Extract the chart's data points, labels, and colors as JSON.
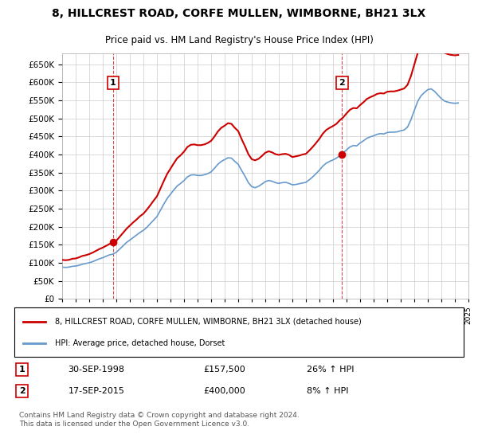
{
  "title": "8, HILLCREST ROAD, CORFE MULLEN, WIMBORNE, BH21 3LX",
  "subtitle": "Price paid vs. HM Land Registry's House Price Index (HPI)",
  "legend_line1": "8, HILLCREST ROAD, CORFE MULLEN, WIMBORNE, BH21 3LX (detached house)",
  "legend_line2": "HPI: Average price, detached house, Dorset",
  "transaction1_label": "1",
  "transaction1_date": "30-SEP-1998",
  "transaction1_price": "£157,500",
  "transaction1_hpi": "26% ↑ HPI",
  "transaction2_label": "2",
  "transaction2_date": "17-SEP-2015",
  "transaction2_price": "£400,000",
  "transaction2_hpi": "8% ↑ HPI",
  "footnote": "Contains HM Land Registry data © Crown copyright and database right 2024.\nThis data is licensed under the Open Government Licence v3.0.",
  "red_color": "#cc0000",
  "blue_color": "#6699cc",
  "marker_color": "#cc0000",
  "background_color": "#ffffff",
  "grid_color": "#cccccc",
  "ylim": [
    0,
    680000
  ],
  "yticks": [
    0,
    50000,
    100000,
    150000,
    200000,
    250000,
    300000,
    350000,
    400000,
    450000,
    500000,
    550000,
    600000,
    650000
  ],
  "hpi_x": [
    1995.0,
    1995.25,
    1995.5,
    1995.75,
    1996.0,
    1996.25,
    1996.5,
    1996.75,
    1997.0,
    1997.25,
    1997.5,
    1997.75,
    1998.0,
    1998.25,
    1998.5,
    1998.75,
    1999.0,
    1999.25,
    1999.5,
    1999.75,
    2000.0,
    2000.25,
    2000.5,
    2000.75,
    2001.0,
    2001.25,
    2001.5,
    2001.75,
    2002.0,
    2002.25,
    2002.5,
    2002.75,
    2003.0,
    2003.25,
    2003.5,
    2003.75,
    2004.0,
    2004.25,
    2004.5,
    2004.75,
    2005.0,
    2005.25,
    2005.5,
    2005.75,
    2006.0,
    2006.25,
    2006.5,
    2006.75,
    2007.0,
    2007.25,
    2007.5,
    2007.75,
    2008.0,
    2008.25,
    2008.5,
    2008.75,
    2009.0,
    2009.25,
    2009.5,
    2009.75,
    2010.0,
    2010.25,
    2010.5,
    2010.75,
    2011.0,
    2011.25,
    2011.5,
    2011.75,
    2012.0,
    2012.25,
    2012.5,
    2012.75,
    2013.0,
    2013.25,
    2013.5,
    2013.75,
    2014.0,
    2014.25,
    2014.5,
    2014.75,
    2015.0,
    2015.25,
    2015.5,
    2015.75,
    2016.0,
    2016.25,
    2016.5,
    2016.75,
    2017.0,
    2017.25,
    2017.5,
    2017.75,
    2018.0,
    2018.25,
    2018.5,
    2018.75,
    2019.0,
    2019.25,
    2019.5,
    2019.75,
    2020.0,
    2020.25,
    2020.5,
    2020.75,
    2021.0,
    2021.25,
    2021.5,
    2021.75,
    2022.0,
    2022.25,
    2022.5,
    2022.75,
    2023.0,
    2023.25,
    2023.5,
    2023.75,
    2024.0,
    2024.25
  ],
  "hpi_y": [
    88000,
    87000,
    88000,
    90000,
    91000,
    93000,
    96000,
    98000,
    100000,
    103000,
    107000,
    111000,
    114000,
    118000,
    122000,
    124000,
    129000,
    138000,
    147000,
    156000,
    163000,
    170000,
    177000,
    184000,
    190000,
    198000,
    208000,
    218000,
    228000,
    245000,
    262000,
    278000,
    290000,
    302000,
    313000,
    320000,
    328000,
    338000,
    343000,
    344000,
    342000,
    342000,
    344000,
    347000,
    352000,
    362000,
    373000,
    381000,
    386000,
    391000,
    390000,
    381000,
    373000,
    356000,
    340000,
    322000,
    311000,
    308000,
    312000,
    318000,
    325000,
    328000,
    326000,
    322000,
    320000,
    322000,
    323000,
    320000,
    316000,
    317000,
    319000,
    321000,
    323000,
    330000,
    338000,
    347000,
    357000,
    368000,
    376000,
    381000,
    385000,
    390000,
    397000,
    404000,
    413000,
    421000,
    425000,
    424000,
    432000,
    438000,
    445000,
    449000,
    452000,
    456000,
    458000,
    457000,
    461000,
    462000,
    462000,
    463000,
    466000,
    468000,
    476000,
    496000,
    522000,
    547000,
    563000,
    572000,
    580000,
    582000,
    575000,
    565000,
    555000,
    548000,
    545000,
    543000,
    542000,
    543000
  ],
  "red_x": [
    1995.0,
    1995.25,
    1995.5,
    1995.75,
    1996.0,
    1996.25,
    1996.5,
    1996.75,
    1997.0,
    1997.25,
    1997.5,
    1997.75,
    1998.0,
    1998.25,
    1998.5,
    1998.75,
    1999.0,
    1999.25,
    1999.5,
    1999.75,
    2000.0,
    2000.25,
    2000.5,
    2000.75,
    2001.0,
    2001.25,
    2001.5,
    2001.75,
    2002.0,
    2002.25,
    2002.5,
    2002.75,
    2003.0,
    2003.25,
    2003.5,
    2003.75,
    2004.0,
    2004.25,
    2004.5,
    2004.75,
    2005.0,
    2005.25,
    2005.5,
    2005.75,
    2006.0,
    2006.25,
    2006.5,
    2006.75,
    2007.0,
    2007.25,
    2007.5,
    2007.75,
    2008.0,
    2008.25,
    2008.5,
    2008.75,
    2009.0,
    2009.25,
    2009.5,
    2009.75,
    2010.0,
    2010.25,
    2010.5,
    2010.75,
    2011.0,
    2011.25,
    2011.5,
    2011.75,
    2012.0,
    2012.25,
    2012.5,
    2012.75,
    2013.0,
    2013.25,
    2013.5,
    2013.75,
    2014.0,
    2014.25,
    2014.5,
    2014.75,
    2015.0,
    2015.25,
    2015.5,
    2015.75,
    2016.0,
    2016.25,
    2016.5,
    2016.75,
    2017.0,
    2017.25,
    2017.5,
    2017.75,
    2018.0,
    2018.25,
    2018.5,
    2018.75,
    2019.0,
    2019.25,
    2019.5,
    2019.75,
    2020.0,
    2020.25,
    2020.5,
    2020.75,
    2021.0,
    2021.25,
    2021.5,
    2021.75,
    2022.0,
    2022.25,
    2022.5,
    2022.75,
    2023.0,
    2023.25,
    2023.5,
    2023.75,
    2024.0,
    2024.25
  ],
  "red_y": [
    108000,
    107000,
    108000,
    111000,
    112000,
    115000,
    119000,
    121000,
    124000,
    128000,
    133000,
    138000,
    142000,
    147000,
    152000,
    155000,
    161000,
    172000,
    183000,
    194000,
    203000,
    212000,
    220000,
    229000,
    236000,
    247000,
    259000,
    272000,
    284000,
    305000,
    326000,
    346000,
    361000,
    376000,
    390000,
    398000,
    408000,
    421000,
    427000,
    428000,
    426000,
    426000,
    428000,
    432000,
    438000,
    450000,
    464000,
    474000,
    480000,
    487000,
    485000,
    474000,
    465000,
    443000,
    423000,
    401000,
    387000,
    384000,
    388000,
    396000,
    405000,
    409000,
    406000,
    401000,
    399000,
    401000,
    402000,
    399000,
    393000,
    395000,
    397000,
    400000,
    402000,
    411000,
    421000,
    432000,
    444000,
    458000,
    468000,
    474000,
    479000,
    485000,
    495000,
    503000,
    514000,
    524000,
    529000,
    528000,
    537000,
    545000,
    554000,
    559000,
    563000,
    568000,
    570000,
    569000,
    574000,
    575000,
    575000,
    577000,
    580000,
    583000,
    593000,
    617000,
    649000,
    681000,
    701000,
    712000,
    722000,
    725000,
    715000,
    703000,
    691000,
    682000,
    678000,
    676000,
    675000,
    676000
  ],
  "transaction1_x": 1998.75,
  "transaction1_y": 157500,
  "transaction2_x": 2015.67,
  "transaction2_y": 400000,
  "vline1_x": 1998.75,
  "vline2_x": 2015.67,
  "xlim": [
    1995.0,
    2025.0
  ],
  "xtick_years": [
    1995,
    1996,
    1997,
    1998,
    1999,
    2000,
    2001,
    2002,
    2003,
    2004,
    2005,
    2006,
    2007,
    2008,
    2009,
    2010,
    2011,
    2012,
    2013,
    2014,
    2015,
    2016,
    2017,
    2018,
    2019,
    2020,
    2021,
    2022,
    2023,
    2024,
    2025
  ]
}
